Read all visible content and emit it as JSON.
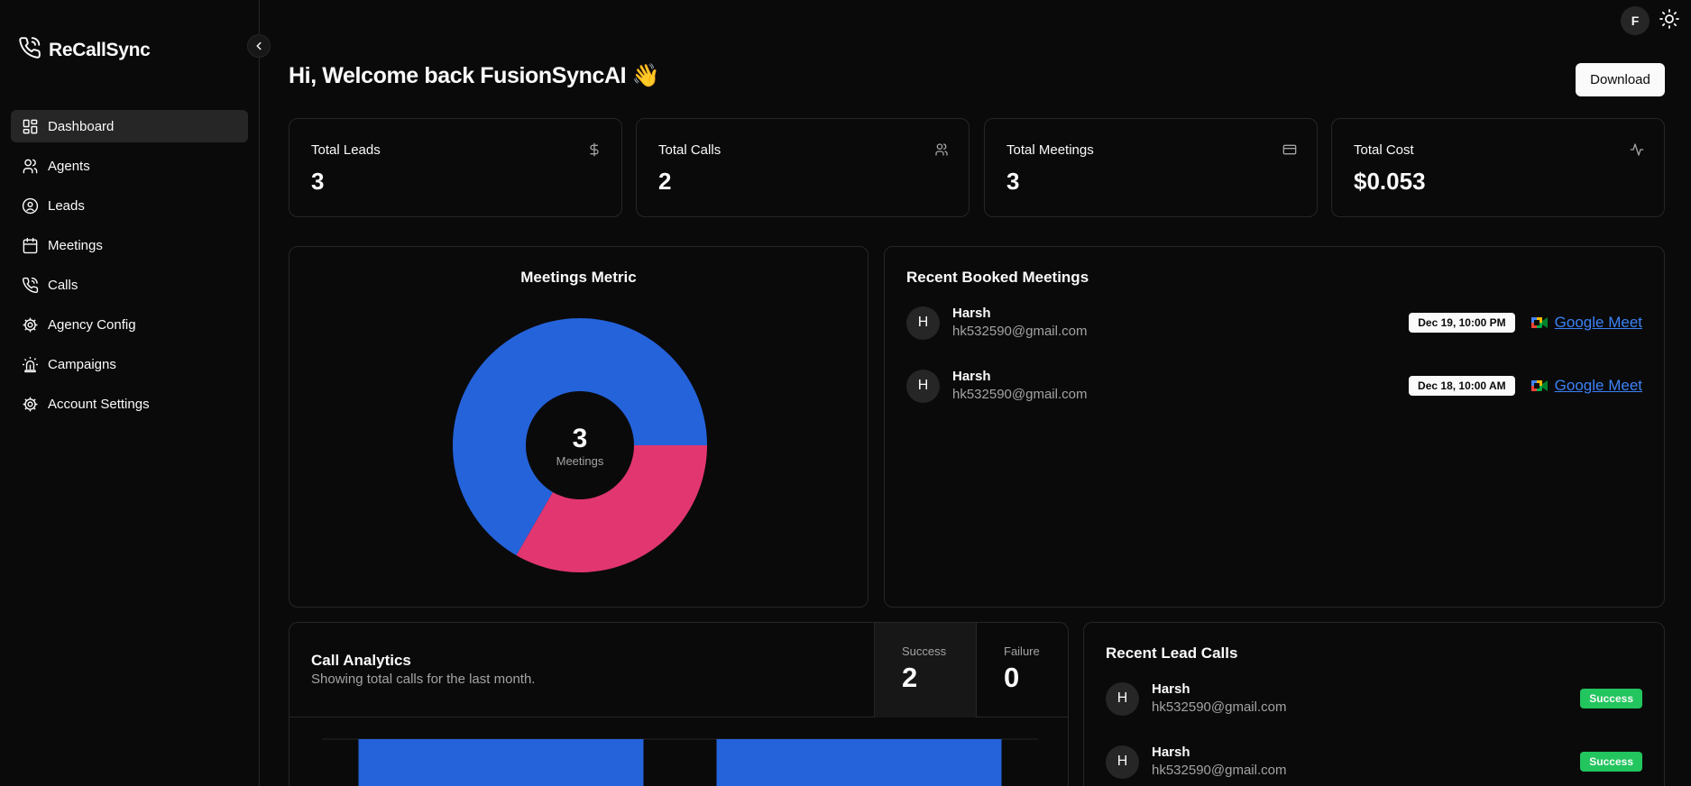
{
  "app": {
    "name": "ReCallSync"
  },
  "user": {
    "initial": "F"
  },
  "sidebar": {
    "items": [
      {
        "label": "Dashboard",
        "icon": "dashboard-icon",
        "active": true
      },
      {
        "label": "Agents",
        "icon": "users-icon"
      },
      {
        "label": "Leads",
        "icon": "user-circle-icon"
      },
      {
        "label": "Meetings",
        "icon": "calendar-icon"
      },
      {
        "label": "Calls",
        "icon": "phone-icon"
      },
      {
        "label": "Agency Config",
        "icon": "gear-icon"
      },
      {
        "label": "Campaigns",
        "icon": "siren-icon"
      },
      {
        "label": "Account Settings",
        "icon": "gear-icon"
      }
    ]
  },
  "header": {
    "greeting": "Hi, Welcome back FusionSyncAI 👋",
    "download_label": "Download"
  },
  "stats": [
    {
      "label": "Total Leads",
      "value": "3",
      "icon": "dollar-icon"
    },
    {
      "label": "Total Calls",
      "value": "2",
      "icon": "users-icon"
    },
    {
      "label": "Total Meetings",
      "value": "3",
      "icon": "credit-card-icon"
    },
    {
      "label": "Total Cost",
      "value": "$0.053",
      "icon": "activity-icon"
    }
  ],
  "meetings_metric": {
    "title": "Meetings Metric",
    "total": "3",
    "total_label": "Meetings"
  },
  "chart_data": [
    {
      "type": "pie",
      "categories": [
        "",
        ""
      ],
      "values": [
        2,
        1
      ],
      "colors": [
        "#2563db",
        "#e23670"
      ],
      "center_value": "3",
      "center_label": "Meetings",
      "title": "Meetings Metric"
    },
    {
      "type": "bar",
      "title": "Call Analytics",
      "subtitle": "Showing total calls for the last month.",
      "categories": [
        "",
        ""
      ],
      "values": [
        1,
        1
      ],
      "color": "#2563db"
    }
  ],
  "recent_meetings": {
    "title": "Recent Booked Meetings",
    "items": [
      {
        "initial": "H",
        "name": "Harsh",
        "email": "hk532590@gmail.com",
        "date": "Dec 19, 10:00 PM",
        "link": "Google Meet"
      },
      {
        "initial": "H",
        "name": "Harsh",
        "email": "hk532590@gmail.com",
        "date": "Dec 18, 10:00 AM",
        "link": "Google Meet"
      }
    ]
  },
  "call_analytics": {
    "title": "Call Analytics",
    "subtitle": "Showing total calls for the last month.",
    "tabs": [
      {
        "label": "Success",
        "value": "2",
        "active": true
      },
      {
        "label": "Failure",
        "value": "0",
        "active": false
      }
    ]
  },
  "recent_calls": {
    "title": "Recent Lead Calls",
    "items": [
      {
        "initial": "H",
        "name": "Harsh",
        "email": "hk532590@gmail.com",
        "status": "Success"
      },
      {
        "initial": "H",
        "name": "Harsh",
        "email": "hk532590@gmail.com",
        "status": "Success"
      }
    ]
  }
}
